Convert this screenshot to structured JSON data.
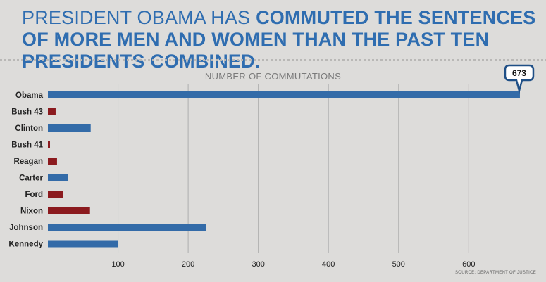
{
  "headline": {
    "light": "PRESIDENT OBAMA HAS ",
    "bold": "COMMUTED THE SENTENCES OF MORE MEN AND WOMEN THAN THE PAST TEN PRESIDENTS COMBINED."
  },
  "source": "SOURCE: DEPARTMENT OF JUSTICE",
  "colors": {
    "democrat": "#336ba8",
    "republican": "#8b1a1e",
    "headline": "#2f6db0"
  },
  "chart_data": {
    "type": "bar",
    "orientation": "horizontal",
    "title": "NUMBER OF COMMUTATIONS",
    "categories": [
      "Obama",
      "Bush 43",
      "Clinton",
      "Bush 41",
      "Reagan",
      "Carter",
      "Ford",
      "Nixon",
      "Johnson",
      "Kennedy"
    ],
    "values": [
      673,
      11,
      61,
      3,
      13,
      29,
      22,
      60,
      226,
      100
    ],
    "party_colors": [
      "democrat",
      "republican",
      "democrat",
      "republican",
      "republican",
      "democrat",
      "republican",
      "republican",
      "democrat",
      "democrat"
    ],
    "xlim": [
      0,
      700
    ],
    "xticks": [
      100,
      200,
      300,
      400,
      500,
      600
    ],
    "grid": true,
    "annotations": [
      {
        "category": "Obama",
        "text": "673"
      }
    ]
  }
}
